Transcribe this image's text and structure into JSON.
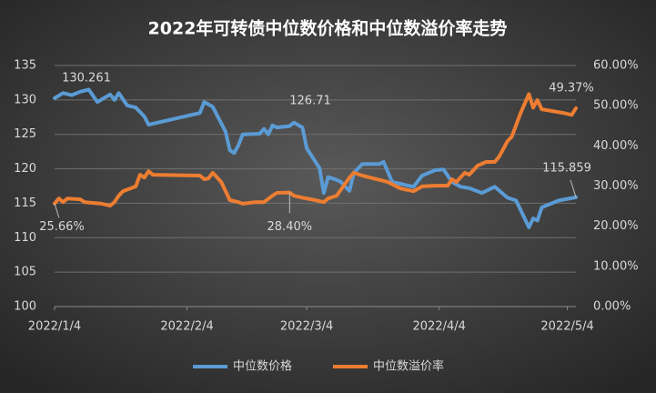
{
  "chart_data": {
    "type": "line",
    "title": "2022年可转债中位数价格和中位数溢价率走势",
    "xlim": [
      "2022/1/4",
      "2022/5/6"
    ],
    "xticks": [
      "2022/1/4",
      "2022/2/4",
      "2022/3/4",
      "2022/4/4",
      "2022/5/4"
    ],
    "ylim": [
      100,
      135
    ],
    "yticks": [
      100,
      105,
      110,
      115,
      120,
      125,
      130,
      135
    ],
    "y2lim": [
      0,
      60
    ],
    "y2ticks": [
      {
        "value": 0,
        "label": "0.00%"
      },
      {
        "value": 10,
        "label": "10.00%"
      },
      {
        "value": 20,
        "label": "20.00%"
      },
      {
        "value": 30,
        "label": "30.00%"
      },
      {
        "value": 40,
        "label": "40.00%"
      },
      {
        "value": 50,
        "label": "50.00%"
      },
      {
        "value": 60,
        "label": "60.00%"
      }
    ],
    "grid": true,
    "legend": "bottom",
    "series": [
      {
        "name": "中位数价格",
        "color": "#5b9bd5",
        "axis": "y",
        "x": [
          "2022/1/4",
          "2022/1/6",
          "2022/1/8",
          "2022/1/10",
          "2022/1/12",
          "2022/1/14",
          "2022/1/17",
          "2022/1/18",
          "2022/1/19",
          "2022/1/21",
          "2022/1/23",
          "2022/1/25",
          "2022/1/26",
          "2022/2/7",
          "2022/2/8",
          "2022/2/10",
          "2022/2/13",
          "2022/2/14",
          "2022/2/15",
          "2022/2/16",
          "2022/2/17",
          "2022/2/21",
          "2022/2/22",
          "2022/2/23",
          "2022/2/24",
          "2022/2/25",
          "2022/2/28",
          "2022/3/1",
          "2022/3/3",
          "2022/3/4",
          "2022/3/7",
          "2022/3/8",
          "2022/3/9",
          "2022/3/11",
          "2022/3/12",
          "2022/3/14",
          "2022/3/15",
          "2022/3/17",
          "2022/3/21",
          "2022/3/22",
          "2022/3/24",
          "2022/3/29",
          "2022/3/31",
          "2022/4/3",
          "2022/4/5",
          "2022/4/7",
          "2022/4/9",
          "2022/4/11",
          "2022/4/14",
          "2022/4/17",
          "2022/4/20",
          "2022/4/22",
          "2022/4/25",
          "2022/4/26",
          "2022/4/27",
          "2022/4/28",
          "2022/5/2",
          "2022/5/6"
        ],
        "values": [
          130.261,
          131.0,
          130.7,
          131.2,
          131.5,
          129.7,
          130.8,
          130.0,
          131.0,
          129.2,
          128.9,
          127.6,
          126.4,
          128.1,
          129.7,
          129.0,
          125.4,
          122.7,
          122.3,
          123.4,
          125.0,
          125.1,
          125.8,
          125.0,
          126.3,
          126.0,
          126.2,
          126.71,
          126.0,
          123.0,
          120.1,
          116.5,
          118.8,
          118.4,
          118.1,
          116.8,
          119.4,
          120.7,
          120.7,
          121.0,
          118.1,
          117.4,
          119.0,
          119.8,
          119.9,
          118.1,
          117.4,
          117.2,
          116.5,
          117.4,
          115.8,
          115.4,
          111.5,
          112.8,
          112.5,
          114.4,
          115.4,
          115.859
        ],
        "value_labels": [
          "130.261",
          null,
          null,
          null,
          null,
          null,
          null,
          null,
          null,
          null,
          null,
          null,
          null,
          null,
          null,
          null,
          null,
          null,
          null,
          null,
          null,
          null,
          null,
          null,
          null,
          null,
          null,
          "126.71",
          null,
          null,
          null,
          null,
          null,
          null,
          null,
          null,
          null,
          null,
          null,
          null,
          null,
          null,
          null,
          null,
          null,
          null,
          null,
          null,
          null,
          null,
          null,
          null,
          null,
          null,
          null,
          null,
          null,
          "115.859"
        ]
      },
      {
        "name": "中位数溢价率",
        "color": "#ed7d31",
        "axis": "y2",
        "x": [
          "2022/1/4",
          "2022/1/5",
          "2022/1/6",
          "2022/1/7",
          "2022/1/10",
          "2022/1/11",
          "2022/1/15",
          "2022/1/17",
          "2022/1/18",
          "2022/1/19",
          "2022/1/20",
          "2022/1/23",
          "2022/1/24",
          "2022/1/25",
          "2022/1/26",
          "2022/1/27",
          "2022/2/7",
          "2022/2/8",
          "2022/2/9",
          "2022/2/10",
          "2022/2/12",
          "2022/2/14",
          "2022/2/16",
          "2022/2/17",
          "2022/2/20",
          "2022/2/22",
          "2022/2/24",
          "2022/2/25",
          "2022/2/28",
          "2022/3/1",
          "2022/3/3",
          "2022/3/6",
          "2022/3/8",
          "2022/3/9",
          "2022/3/11",
          "2022/3/14",
          "2022/3/15",
          "2022/3/17",
          "2022/3/23",
          "2022/3/26",
          "2022/3/29",
          "2022/3/31",
          "2022/4/3",
          "2022/4/6",
          "2022/4/7",
          "2022/4/8",
          "2022/4/10",
          "2022/4/11",
          "2022/4/13",
          "2022/4/15",
          "2022/4/17",
          "2022/4/18",
          "2022/4/20",
          "2022/4/21",
          "2022/4/23",
          "2022/4/25",
          "2022/4/26",
          "2022/4/27",
          "2022/4/28",
          "2022/5/3",
          "2022/5/5",
          "2022/5/6"
        ],
        "values": [
          25.66,
          26.9,
          26.0,
          26.9,
          26.7,
          26.0,
          25.6,
          25.1,
          26.0,
          27.6,
          28.7,
          29.9,
          32.8,
          32.1,
          33.7,
          32.8,
          32.6,
          31.7,
          31.9,
          33.3,
          31.0,
          26.5,
          26.0,
          25.6,
          26.0,
          26.0,
          27.6,
          28.3,
          28.4,
          27.6,
          27.1,
          26.5,
          26.0,
          26.9,
          27.6,
          32.1,
          33.3,
          32.6,
          31.0,
          29.4,
          28.7,
          29.9,
          30.1,
          30.1,
          31.7,
          31.0,
          33.3,
          32.8,
          35.1,
          36.0,
          36.0,
          37.3,
          41.2,
          42.3,
          48.0,
          52.9,
          49.5,
          51.4,
          49.1,
          48.2,
          47.7,
          49.37
        ],
        "value_labels": [
          "25.66%",
          null,
          null,
          null,
          null,
          null,
          null,
          null,
          null,
          null,
          null,
          null,
          null,
          null,
          null,
          null,
          null,
          null,
          null,
          null,
          null,
          null,
          null,
          null,
          null,
          null,
          null,
          null,
          "28.40%",
          null,
          null,
          null,
          null,
          null,
          null,
          null,
          null,
          null,
          null,
          null,
          null,
          null,
          null,
          null,
          null,
          null,
          null,
          null,
          null,
          null,
          null,
          null,
          null,
          null,
          null,
          null,
          null,
          null,
          null,
          null,
          null,
          "49.37%"
        ]
      }
    ]
  }
}
